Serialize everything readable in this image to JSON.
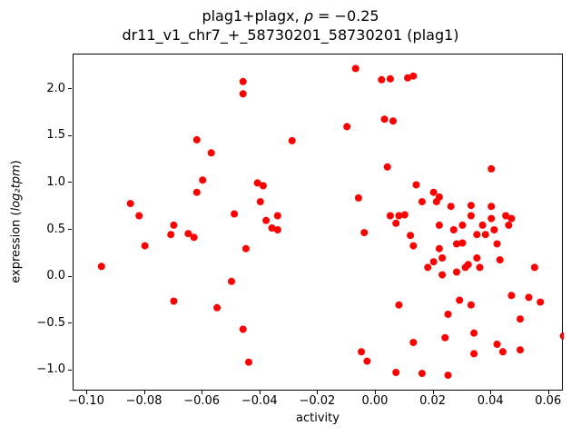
{
  "figure": {
    "title_line1": {
      "pre": "plag1+plagx, ",
      "rho": "ρ",
      "post": " = −0.25"
    },
    "title_line2": "dr11_v1_chr7_+_58730201_58730201 (plag1)",
    "xlabel": "activity",
    "ylabel": {
      "plain_pre": "expression (",
      "math": "log₂tpm",
      "plain_post": ")"
    }
  },
  "chart_data": {
    "type": "scatter",
    "title": "plag1+plagx, ρ = −0.25",
    "subtitle": "dr11_v1_chr7_+_58730201_58730201 (plag1)",
    "xlabel": "activity",
    "ylabel": "expression (log2 tpm)",
    "legend": "none",
    "grid": false,
    "marker_color": "#ff0000",
    "marker_radius": 4,
    "xlim": [
      -0.1047,
      0.0651
    ],
    "ylim": [
      -1.223,
      2.369
    ],
    "xticks": {
      "values": [
        -0.1,
        -0.08,
        -0.06,
        -0.04,
        -0.02,
        0.0,
        0.02,
        0.04,
        0.06
      ],
      "labels": [
        "−0.10",
        "−0.08",
        "−0.06",
        "−0.04",
        "−0.02",
        "0.00",
        "0.02",
        "0.04",
        "0.06"
      ]
    },
    "yticks": {
      "values": [
        -1.0,
        -0.5,
        0.0,
        0.5,
        1.0,
        1.5,
        2.0
      ],
      "labels": [
        "−1.0",
        "−0.5",
        "0.0",
        "0.5",
        "1.0",
        "1.5",
        "2.0"
      ]
    },
    "points": [
      [
        -0.095,
        0.11
      ],
      [
        -0.085,
        0.78
      ],
      [
        -0.082,
        0.65
      ],
      [
        -0.08,
        0.33
      ],
      [
        -0.071,
        0.45
      ],
      [
        -0.07,
        0.55
      ],
      [
        -0.07,
        -0.26
      ],
      [
        -0.065,
        0.46
      ],
      [
        -0.063,
        0.42
      ],
      [
        -0.062,
        1.46
      ],
      [
        -0.062,
        0.9
      ],
      [
        -0.06,
        1.03
      ],
      [
        -0.057,
        1.32
      ],
      [
        -0.055,
        -0.33
      ],
      [
        -0.05,
        -0.05
      ],
      [
        -0.049,
        0.67
      ],
      [
        -0.046,
        2.08
      ],
      [
        -0.046,
        1.95
      ],
      [
        -0.045,
        0.3
      ],
      [
        -0.046,
        -0.56
      ],
      [
        -0.044,
        -0.91
      ],
      [
        -0.041,
        1.0
      ],
      [
        -0.039,
        0.97
      ],
      [
        -0.04,
        0.8
      ],
      [
        -0.038,
        0.6
      ],
      [
        -0.036,
        0.52
      ],
      [
        -0.034,
        0.65
      ],
      [
        -0.034,
        0.5
      ],
      [
        -0.029,
        1.45
      ],
      [
        -0.01,
        1.6
      ],
      [
        -0.007,
        2.22
      ],
      [
        -0.006,
        0.84
      ],
      [
        -0.005,
        -0.8
      ],
      [
        -0.004,
        0.47
      ],
      [
        -0.003,
        -0.9
      ],
      [
        0.002,
        2.1
      ],
      [
        0.005,
        2.11
      ],
      [
        0.003,
        1.68
      ],
      [
        0.006,
        1.66
      ],
      [
        0.004,
        1.17
      ],
      [
        0.005,
        0.65
      ],
      [
        0.007,
        0.57
      ],
      [
        0.008,
        0.65
      ],
      [
        0.008,
        -0.3
      ],
      [
        0.007,
        -1.02
      ],
      [
        0.011,
        2.12
      ],
      [
        0.013,
        2.14
      ],
      [
        0.01,
        0.66
      ],
      [
        0.012,
        0.44
      ],
      [
        0.013,
        0.33
      ],
      [
        0.014,
        0.98
      ],
      [
        0.016,
        0.8
      ],
      [
        0.013,
        -0.7
      ],
      [
        0.016,
        -1.03
      ],
      [
        0.018,
        0.1
      ],
      [
        0.02,
        0.16
      ],
      [
        0.02,
        0.9
      ],
      [
        0.021,
        0.8
      ],
      [
        0.022,
        0.85
      ],
      [
        0.022,
        0.55
      ],
      [
        0.022,
        0.3
      ],
      [
        0.023,
        0.2
      ],
      [
        0.023,
        0.02
      ],
      [
        0.024,
        -0.65
      ],
      [
        0.025,
        -0.4
      ],
      [
        0.025,
        -1.05
      ],
      [
        0.026,
        0.75
      ],
      [
        0.027,
        0.5
      ],
      [
        0.028,
        0.35
      ],
      [
        0.028,
        0.05
      ],
      [
        0.029,
        -0.25
      ],
      [
        0.03,
        0.55
      ],
      [
        0.03,
        0.36
      ],
      [
        0.031,
        0.1
      ],
      [
        0.032,
        0.13
      ],
      [
        0.033,
        0.65
      ],
      [
        0.033,
        0.76
      ],
      [
        0.033,
        -0.3
      ],
      [
        0.034,
        -0.6
      ],
      [
        0.034,
        -0.82
      ],
      [
        0.035,
        0.45
      ],
      [
        0.035,
        0.2
      ],
      [
        0.036,
        0.1
      ],
      [
        0.037,
        0.55
      ],
      [
        0.038,
        0.45
      ],
      [
        0.04,
        1.15
      ],
      [
        0.04,
        0.75
      ],
      [
        0.04,
        0.62
      ],
      [
        0.041,
        0.5
      ],
      [
        0.042,
        0.35
      ],
      [
        0.042,
        -0.72
      ],
      [
        0.043,
        0.18
      ],
      [
        0.044,
        -0.8
      ],
      [
        0.045,
        0.65
      ],
      [
        0.046,
        0.55
      ],
      [
        0.047,
        0.62
      ],
      [
        0.047,
        -0.2
      ],
      [
        0.05,
        -0.45
      ],
      [
        0.05,
        -0.78
      ],
      [
        0.053,
        -0.22
      ],
      [
        0.055,
        0.1
      ],
      [
        0.057,
        -0.27
      ],
      [
        0.065,
        -0.63
      ]
    ]
  }
}
